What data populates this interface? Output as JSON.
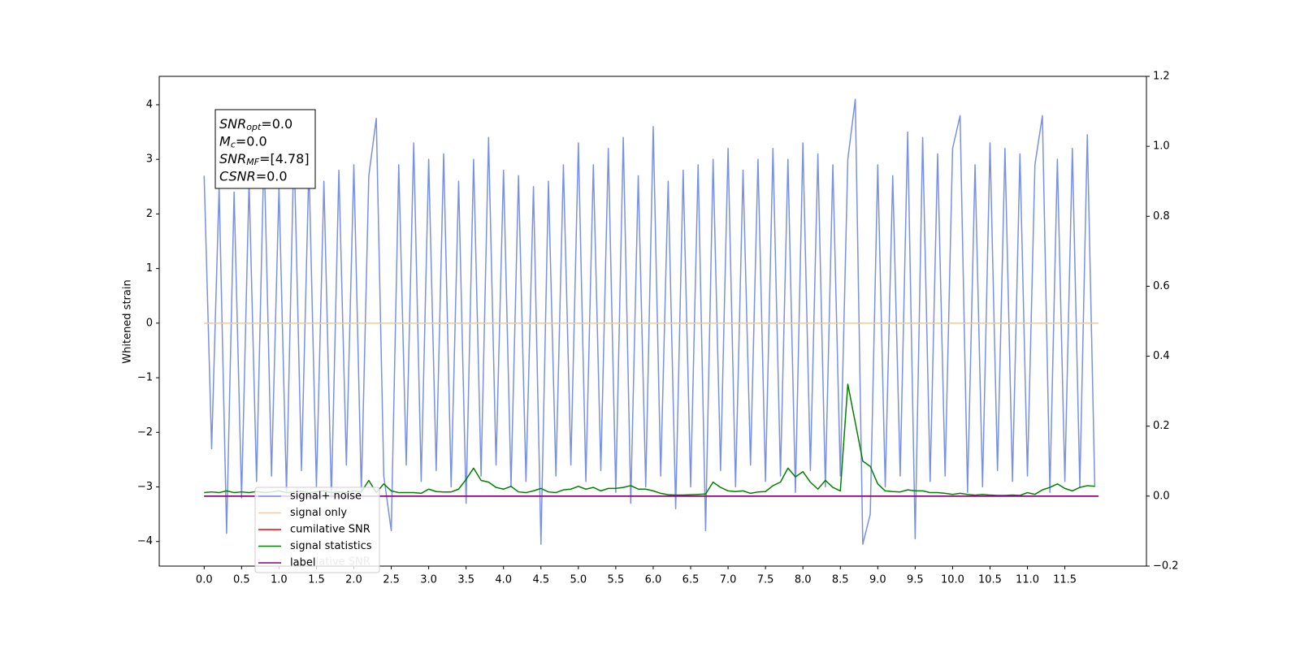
{
  "chart_data": {
    "type": "line",
    "ylabel": "Whitened strain",
    "xlim": [
      -0.6,
      12.59
    ],
    "ylim": [
      -4.45,
      4.52
    ],
    "y2lim": [
      -0.2,
      1.2
    ],
    "xticks": [
      {
        "value": 0,
        "label": "0.0"
      },
      {
        "value": 0.5,
        "label": "0.5"
      },
      {
        "value": 1,
        "label": "1.0"
      },
      {
        "value": 1.5,
        "label": "1.5"
      },
      {
        "value": 2,
        "label": "2.0"
      },
      {
        "value": 2.5,
        "label": "2.5"
      },
      {
        "value": 3,
        "label": "3.0"
      },
      {
        "value": 3.5,
        "label": "3.5"
      },
      {
        "value": 4,
        "label": "4.0"
      },
      {
        "value": 4.5,
        "label": "4.5"
      },
      {
        "value": 5,
        "label": "5.0"
      },
      {
        "value": 5.5,
        "label": "5.5"
      },
      {
        "value": 6,
        "label": "6.0"
      },
      {
        "value": 6.5,
        "label": "6.5"
      },
      {
        "value": 7,
        "label": "7.0"
      },
      {
        "value": 7.5,
        "label": "7.5"
      },
      {
        "value": 8,
        "label": "8.0"
      },
      {
        "value": 8.5,
        "label": "8.5"
      },
      {
        "value": 9,
        "label": "9.0"
      },
      {
        "value": 9.5,
        "label": "9.5"
      },
      {
        "value": 10,
        "label": "10.0"
      },
      {
        "value": 10.5,
        "label": "10.5"
      },
      {
        "value": 11,
        "label": "11.0"
      },
      {
        "value": 11.5,
        "label": "11.5"
      }
    ],
    "yticks": [
      {
        "value": -4,
        "label": "−4"
      },
      {
        "value": -3,
        "label": "−3"
      },
      {
        "value": -2,
        "label": "−2"
      },
      {
        "value": -1,
        "label": "−1"
      },
      0,
      1,
      2,
      3,
      4
    ],
    "y2ticks": [
      {
        "value": -0.2,
        "label": "−0.2"
      },
      {
        "value": 0,
        "label": "0.0"
      },
      {
        "value": 0.2,
        "label": "0.2"
      },
      {
        "value": 0.4,
        "label": "0.4"
      },
      {
        "value": 0.6,
        "label": "0.6"
      },
      {
        "value": 0.8,
        "label": "0.8"
      },
      {
        "value": 1,
        "label": "1.0"
      },
      {
        "value": 1.2,
        "label": "1.2"
      }
    ],
    "grid": false,
    "legend_loc": "lower left",
    "annotation": [
      {
        "symbol": "SNR",
        "sub": "opt",
        "text": "=0.0"
      },
      {
        "symbol": "M",
        "sub": "c",
        "text": "=0.0"
      },
      {
        "symbol": "SNR",
        "sub": "MF",
        "text": "=[4.78]"
      },
      {
        "symbol": "CSNR",
        "text": "=0.0"
      }
    ],
    "background_text": "cumilative SNR",
    "series": [
      {
        "name": "signal+ noise",
        "color": "#7891e6",
        "x": [
          0,
          0.1,
          0.2,
          0.3,
          0.4,
          0.5,
          0.6,
          0.7,
          0.8,
          0.9,
          1,
          1.1,
          1.2,
          1.3,
          1.4,
          1.5,
          1.6,
          1.7,
          1.8,
          1.9,
          2,
          2.1,
          2.2,
          2.3,
          2.4,
          2.5,
          2.6,
          2.7,
          2.8,
          2.9,
          3,
          3.1,
          3.2,
          3.3,
          3.4,
          3.5,
          3.6,
          3.7,
          3.8,
          3.9,
          4,
          4.1,
          4.2,
          4.3,
          4.4,
          4.5,
          4.6,
          4.7,
          4.8,
          4.9,
          5,
          5.1,
          5.2,
          5.3,
          5.4,
          5.5,
          5.6,
          5.7,
          5.8,
          5.9,
          6,
          6.1,
          6.2,
          6.3,
          6.4,
          6.5,
          6.6,
          6.7,
          6.8,
          6.9,
          7,
          7.1,
          7.2,
          7.3,
          7.4,
          7.5,
          7.6,
          7.7,
          7.8,
          7.9,
          8,
          8.1,
          8.2,
          8.3,
          8.4,
          8.5,
          8.6,
          8.7,
          8.8,
          8.9,
          9,
          9.1,
          9.2,
          9.3,
          9.4,
          9.5,
          9.6,
          9.7,
          9.8,
          9.9,
          10,
          10.1,
          10.2,
          10.3,
          10.4,
          10.5,
          10.6,
          10.7,
          10.8,
          10.9,
          11,
          11.1,
          11.2,
          11.3,
          11.4,
          11.5,
          11.6,
          11.7,
          11.8,
          11.9
        ],
        "values": [
          2.7,
          -2.3,
          2.5,
          -3.85,
          2.4,
          -3.2,
          2.6,
          -2.9,
          3.2,
          -2.8,
          2.5,
          -3.1,
          3.3,
          -2.7,
          2.9,
          -3.0,
          2.6,
          -3.2,
          2.8,
          -2.6,
          2.9,
          -3.1,
          2.7,
          3.75,
          -2.8,
          -3.8,
          2.9,
          -2.6,
          3.3,
          -2.9,
          3.0,
          -2.7,
          3.1,
          -3.0,
          2.6,
          -3.3,
          3.0,
          -2.8,
          3.4,
          -2.6,
          2.8,
          -3.0,
          2.7,
          -2.9,
          2.5,
          -4.05,
          2.6,
          -2.8,
          2.9,
          -2.6,
          3.3,
          -2.9,
          2.9,
          -2.7,
          3.2,
          -3.1,
          3.4,
          -3.3,
          2.7,
          -3.0,
          3.6,
          -2.8,
          2.6,
          -3.4,
          2.8,
          -3.0,
          2.9,
          -3.8,
          3.0,
          -2.7,
          3.2,
          -3.0,
          2.8,
          -2.6,
          3.0,
          -2.9,
          3.2,
          -2.8,
          3.0,
          -3.1,
          3.3,
          -2.7,
          3.1,
          -3.0,
          2.9,
          -2.8,
          3.0,
          4.1,
          -4.05,
          -3.5,
          2.9,
          -3.0,
          2.7,
          -2.8,
          3.5,
          -3.95,
          3.4,
          -2.9,
          3.1,
          -2.8,
          3.2,
          3.8,
          -3.1,
          2.9,
          -3.0,
          3.3,
          -2.7,
          3.2,
          -2.9,
          3.1,
          -2.8,
          2.9,
          3.8,
          -3.1,
          3.0,
          -2.9,
          3.2,
          -3.0,
          3.45,
          -3.0
        ]
      },
      {
        "name": "signal only",
        "color": "#ffc87a",
        "x": [
          0,
          11.95
        ],
        "values": [
          0,
          0
        ]
      },
      {
        "name": "cumilative SNR",
        "color": "red",
        "axis": "y2",
        "x": [
          0,
          11.95
        ],
        "values": [
          0,
          0
        ]
      },
      {
        "name": "signal statistics",
        "color": "green",
        "axis": "y2",
        "x": [
          0,
          0.1,
          0.2,
          0.3,
          0.4,
          0.5,
          0.6,
          0.7,
          0.8,
          0.9,
          1,
          1.1,
          1.2,
          1.3,
          1.4,
          1.5,
          1.6,
          1.7,
          1.8,
          1.9,
          2,
          2.1,
          2.2,
          2.3,
          2.4,
          2.5,
          2.6,
          2.7,
          2.8,
          2.9,
          3,
          3.1,
          3.2,
          3.3,
          3.4,
          3.5,
          3.6,
          3.7,
          3.8,
          3.9,
          4,
          4.1,
          4.2,
          4.3,
          4.4,
          4.5,
          4.6,
          4.7,
          4.8,
          4.9,
          5,
          5.1,
          5.2,
          5.3,
          5.4,
          5.5,
          5.6,
          5.7,
          5.8,
          5.9,
          6,
          6.1,
          6.2,
          6.3,
          6.4,
          6.5,
          6.6,
          6.7,
          6.8,
          6.9,
          7,
          7.1,
          7.2,
          7.3,
          7.4,
          7.5,
          7.6,
          7.7,
          7.8,
          7.9,
          8,
          8.1,
          8.2,
          8.3,
          8.4,
          8.5,
          8.6,
          8.7,
          8.8,
          8.9,
          9,
          9.1,
          9.2,
          9.3,
          9.4,
          9.5,
          9.6,
          9.7,
          9.8,
          9.9,
          10,
          10.1,
          10.2,
          10.3,
          10.4,
          10.5,
          10.6,
          10.7,
          10.8,
          10.9,
          11,
          11.1,
          11.2,
          11.3,
          11.4,
          11.5,
          11.6,
          11.7,
          11.8,
          11.9
        ],
        "values": [
          0.01,
          0.012,
          0.01,
          0.015,
          0.01,
          0.012,
          0.01,
          0.013,
          0.01,
          0.012,
          0.015,
          0.01,
          0.012,
          0.014,
          0.01,
          0.012,
          0.015,
          0.01,
          0.012,
          0.01,
          0.015,
          0.012,
          0.045,
          0.01,
          0.035,
          0.015,
          0.01,
          0.01,
          0.01,
          0.008,
          0.02,
          0.013,
          0.012,
          0.012,
          0.02,
          0.048,
          0.08,
          0.045,
          0.04,
          0.025,
          0.02,
          0.028,
          0.012,
          0.01,
          0.015,
          0.022,
          0.012,
          0.01,
          0.018,
          0.02,
          0.028,
          0.02,
          0.025,
          0.015,
          0.022,
          0.022,
          0.025,
          0.03,
          0.02,
          0.02,
          0.015,
          0.008,
          0.004,
          0.003,
          0.003,
          0.004,
          0.005,
          0.006,
          0.04,
          0.025,
          0.015,
          0.013,
          0.015,
          0.008,
          0.012,
          0.013,
          0.03,
          0.04,
          0.08,
          0.055,
          0.07,
          0.04,
          0.02,
          0.045,
          0.025,
          0.015,
          0.32,
          0.21,
          0.1,
          0.085,
          0.035,
          0.015,
          0.013,
          0.012,
          0.018,
          0.015,
          0.015,
          0.01,
          0.01,
          0.008,
          0.005,
          0.008,
          0.005,
          0.003,
          0.005,
          0.003,
          0.002,
          0.002,
          0.003,
          0.002,
          0.01,
          0.005,
          0.018,
          0.025,
          0.035,
          0.022,
          0.015,
          0.025,
          0.03,
          0.028
        ]
      },
      {
        "name": "label",
        "color": "purple",
        "axis": "y2",
        "x": [
          0,
          11.95
        ],
        "values": [
          0,
          0
        ]
      }
    ]
  }
}
